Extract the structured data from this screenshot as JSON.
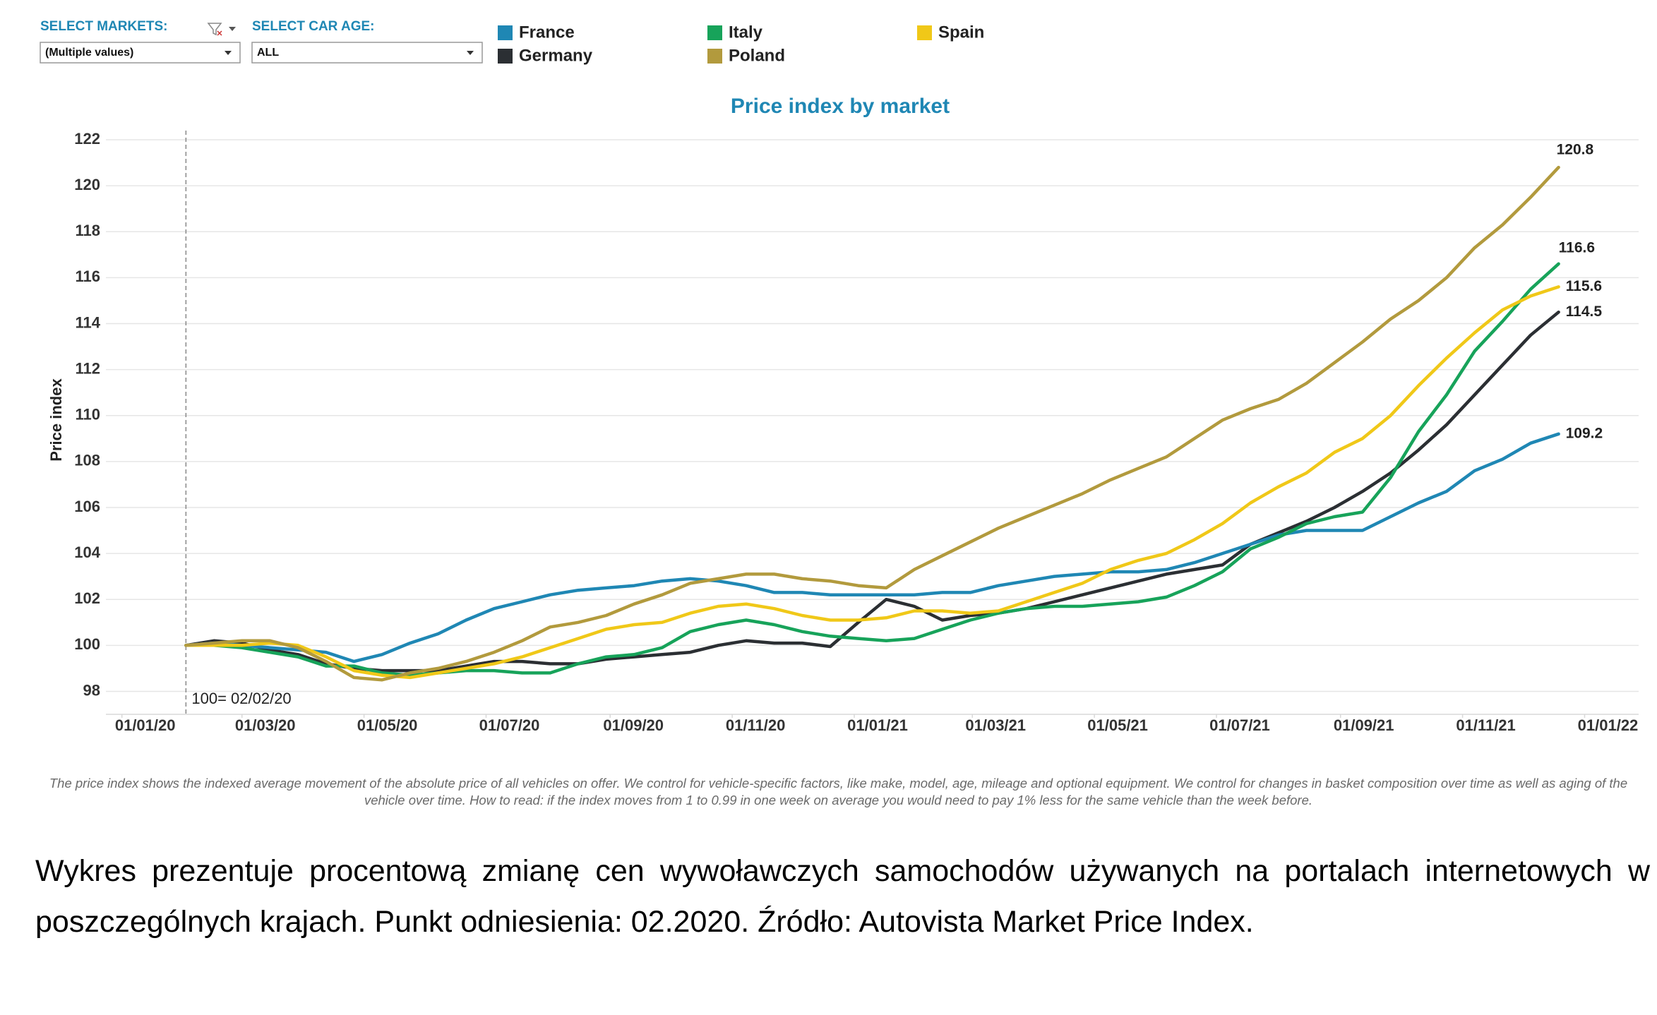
{
  "controls": {
    "markets": {
      "label": "SELECT MARKETS:",
      "value": "(Multiple values)"
    },
    "car_age": {
      "label": "SELECT CAR AGE:",
      "value": "ALL"
    }
  },
  "chart_data": {
    "type": "line",
    "title": "Price index by market",
    "y_label": "Price index",
    "x": [
      "2020-02-02",
      "2020-02-16",
      "2020-03-01",
      "2020-03-15",
      "2020-03-29",
      "2020-04-12",
      "2020-04-26",
      "2020-05-10",
      "2020-05-24",
      "2020-06-07",
      "2020-06-21",
      "2020-07-05",
      "2020-07-19",
      "2020-08-02",
      "2020-08-16",
      "2020-08-30",
      "2020-09-13",
      "2020-09-27",
      "2020-10-11",
      "2020-10-25",
      "2020-11-08",
      "2020-11-22",
      "2020-12-06",
      "2020-12-20",
      "2021-01-03",
      "2021-01-17",
      "2021-01-31",
      "2021-02-14",
      "2021-02-28",
      "2021-03-14",
      "2021-03-28",
      "2021-04-11",
      "2021-04-25",
      "2021-05-09",
      "2021-05-23",
      "2021-06-06",
      "2021-06-20",
      "2021-07-04",
      "2021-07-18",
      "2021-08-01",
      "2021-08-15",
      "2021-08-29",
      "2021-09-12",
      "2021-09-26",
      "2021-10-10",
      "2021-10-24",
      "2021-11-07",
      "2021-11-21",
      "2021-12-05",
      "2021-12-19"
    ],
    "series": [
      {
        "name": "France",
        "color": "#1f87b4",
        "values": [
          100,
          100.1,
          100,
          99.9,
          99.8,
          99.7,
          99.3,
          99.6,
          100.1,
          100.5,
          101.1,
          101.6,
          101.9,
          102.2,
          102.4,
          102.5,
          102.6,
          102.8,
          102.9,
          102.8,
          102.6,
          102.3,
          102.3,
          102.2,
          102.2,
          102.2,
          102.2,
          102.3,
          102.3,
          102.6,
          102.8,
          103,
          103.1,
          103.2,
          103.2,
          103.3,
          103.6,
          104,
          104.4,
          104.8,
          105,
          105,
          105,
          105.6,
          106.2,
          106.7,
          107.6,
          108.1,
          108.8,
          109.2
        ]
      },
      {
        "name": "Germany",
        "color": "#2b2f33",
        "values": [
          100,
          100.2,
          100.1,
          99.8,
          99.6,
          99.2,
          99,
          98.9,
          98.9,
          98.9,
          99.1,
          99.3,
          99.3,
          99.2,
          99.2,
          99.4,
          99.5,
          99.6,
          99.7,
          100,
          100.2,
          100.1,
          100.1,
          99.95,
          101,
          102,
          101.7,
          101.1,
          101.3,
          101.4,
          101.6,
          101.9,
          102.2,
          102.5,
          102.8,
          103.1,
          103.3,
          103.5,
          104.4,
          104.9,
          105.4,
          106,
          106.7,
          107.5,
          108.5,
          109.6,
          110.9,
          112.2,
          113.5,
          114.5
        ]
      },
      {
        "name": "Italy",
        "color": "#17a35a",
        "values": [
          100,
          100,
          99.9,
          99.7,
          99.5,
          99.1,
          99.1,
          98.8,
          98.7,
          98.8,
          98.9,
          98.9,
          98.8,
          98.8,
          99.2,
          99.5,
          99.6,
          99.9,
          100.6,
          100.9,
          101.1,
          100.9,
          100.6,
          100.4,
          100.3,
          100.2,
          100.3,
          100.7,
          101.1,
          101.4,
          101.6,
          101.7,
          101.7,
          101.8,
          101.9,
          102.1,
          102.6,
          103.2,
          104.2,
          104.7,
          105.3,
          105.6,
          105.8,
          107.3,
          109.3,
          110.9,
          112.8,
          114.1,
          115.5,
          116.6
        ]
      },
      {
        "name": "Poland",
        "color": "#b29a3d",
        "values": [
          100,
          100.1,
          100.2,
          100.2,
          99.9,
          99.3,
          98.6,
          98.5,
          98.8,
          99,
          99.3,
          99.7,
          100.2,
          100.8,
          101,
          101.3,
          101.8,
          102.2,
          102.7,
          102.9,
          103.1,
          103.1,
          102.9,
          102.8,
          102.6,
          102.5,
          103.3,
          103.9,
          104.5,
          105.1,
          105.6,
          106.1,
          106.6,
          107.2,
          107.7,
          108.2,
          109,
          109.8,
          110.3,
          110.7,
          111.4,
          112.3,
          113.2,
          114.2,
          115,
          116,
          117.3,
          118.3,
          119.5,
          120.8
        ]
      },
      {
        "name": "Spain",
        "color": "#f0c818",
        "values": [
          100,
          100,
          100,
          100.1,
          100,
          99.5,
          98.9,
          98.7,
          98.6,
          98.8,
          99,
          99.2,
          99.5,
          99.9,
          100.3,
          100.7,
          100.9,
          101,
          101.4,
          101.7,
          101.8,
          101.6,
          101.3,
          101.1,
          101.1,
          101.2,
          101.5,
          101.5,
          101.4,
          101.5,
          101.9,
          102.3,
          102.7,
          103.3,
          103.7,
          104,
          104.6,
          105.3,
          106.2,
          106.9,
          107.5,
          108.4,
          109,
          110,
          111.3,
          112.5,
          113.6,
          114.6,
          115.2,
          115.6
        ]
      }
    ],
    "xlim": [
      "2019-12-24",
      "2022-01-28"
    ],
    "xticks": [
      {
        "value": "2020-01-01",
        "label": "01/01/20"
      },
      {
        "value": "2020-03-01",
        "label": "01/03/20"
      },
      {
        "value": "2020-05-01",
        "label": "01/05/20"
      },
      {
        "value": "2020-07-01",
        "label": "01/07/20"
      },
      {
        "value": "2020-09-01",
        "label": "01/09/20"
      },
      {
        "value": "2020-11-01",
        "label": "01/11/20"
      },
      {
        "value": "2021-01-01",
        "label": "01/01/21"
      },
      {
        "value": "2021-03-01",
        "label": "01/03/21"
      },
      {
        "value": "2021-05-01",
        "label": "01/05/21"
      },
      {
        "value": "2021-07-01",
        "label": "01/07/21"
      },
      {
        "value": "2021-09-01",
        "label": "01/09/21"
      },
      {
        "value": "2021-11-01",
        "label": "01/11/21"
      },
      {
        "value": "2022-01-01",
        "label": "01/01/22"
      }
    ],
    "ylim": [
      97,
      122.4
    ],
    "yticks": [
      98,
      100,
      102,
      104,
      106,
      108,
      110,
      112,
      114,
      116,
      118,
      120,
      122
    ],
    "grid": true,
    "reference_line": {
      "x": "2020-02-02",
      "label": "100= 02/02/20"
    }
  },
  "footnote": "The price index shows the indexed average movement of the absolute price of all vehicles on offer. We control for vehicle-specific factors, like make, model, age, mileage and optional equipment. We control for changes in basket composition over time as well as aging of the vehicle over time. How to read: if the index moves from 1 to 0.99 in one week on average you would need to pay 1% less for the same vehicle than the week before.",
  "caption": "Wykres prezentuje procentową zmianę cen wywoławczych samochodów używanych na portalach internetowych w poszczególnych krajach. Punkt odniesienia: 02.2020. Źródło: Autovista Market Price Index."
}
